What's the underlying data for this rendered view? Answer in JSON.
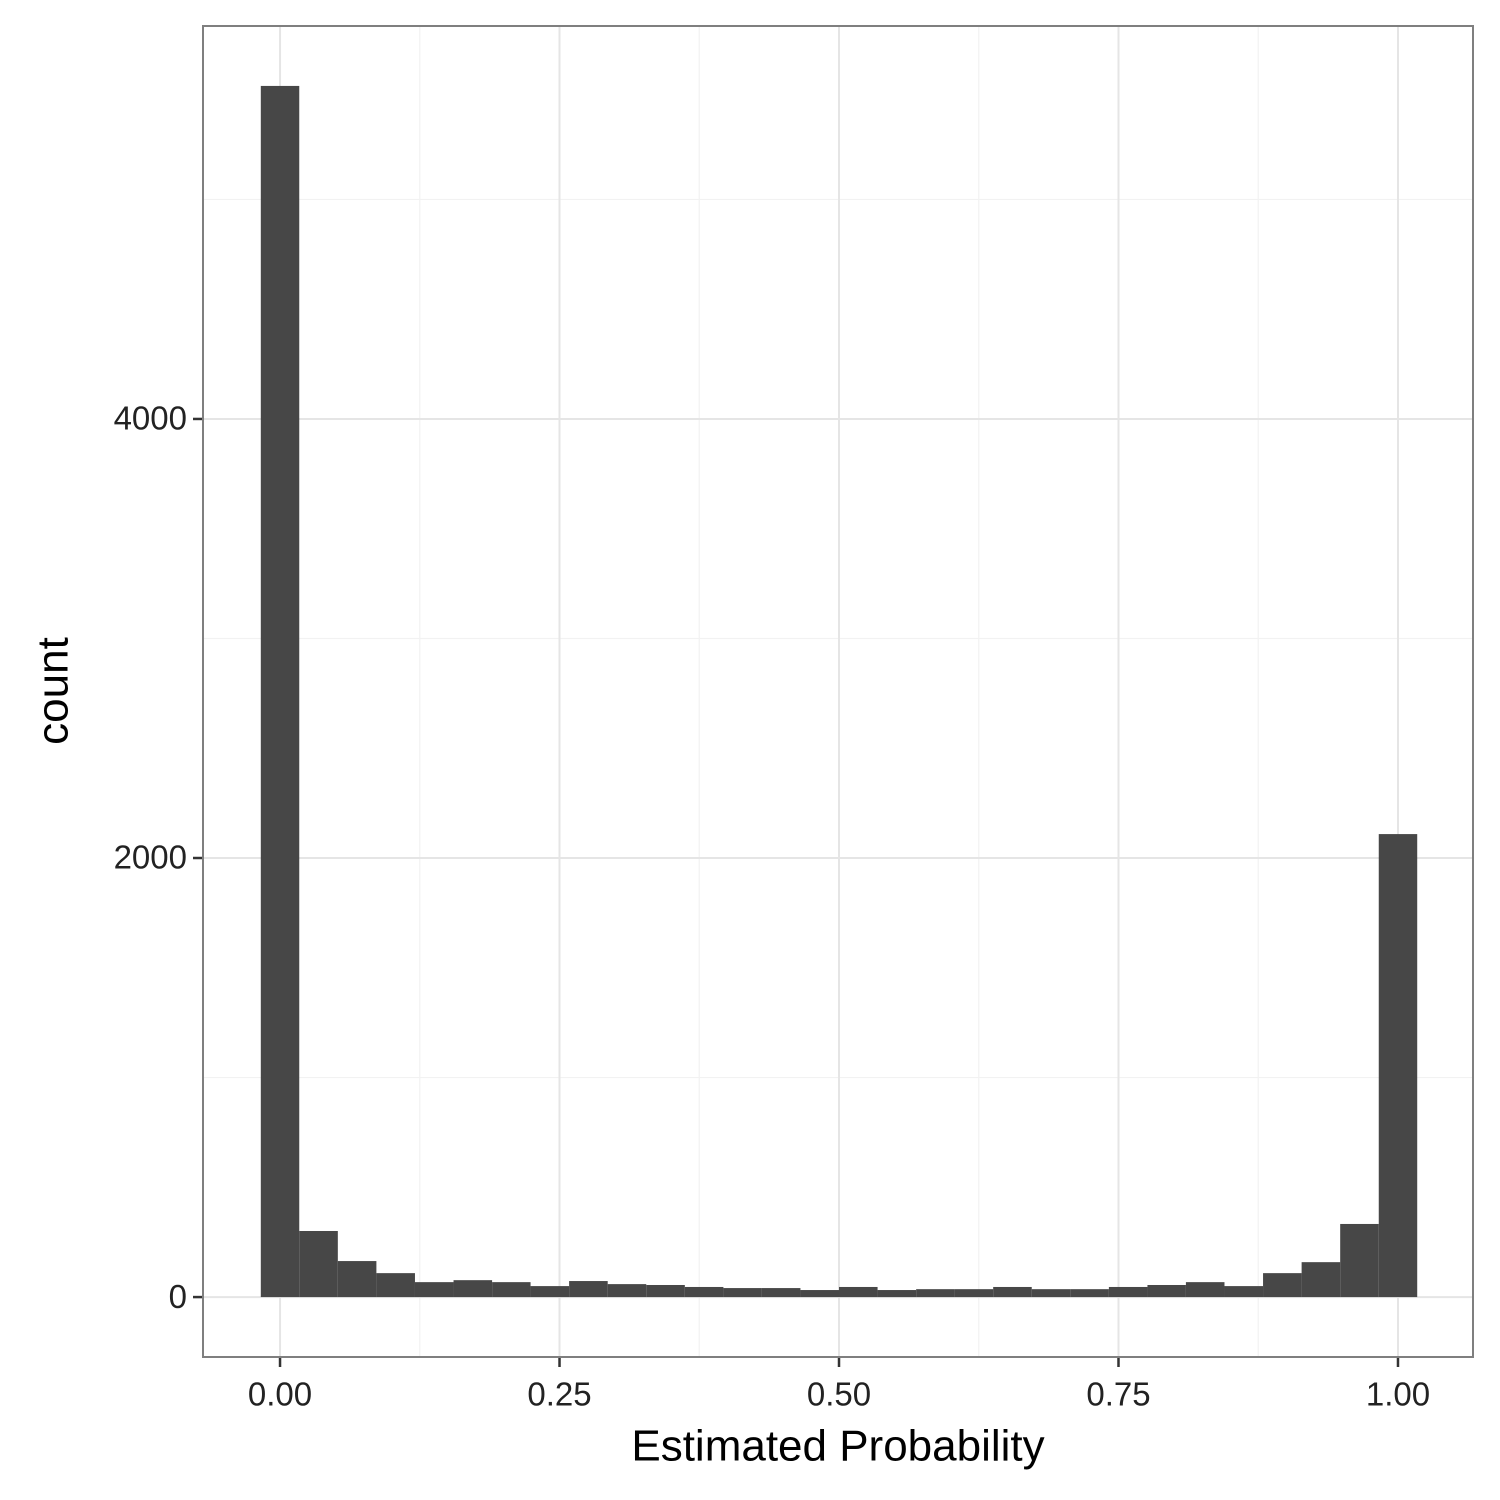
{
  "chart_data": {
    "type": "histogram",
    "x_label": "Estimated Probability",
    "y_label": "count",
    "bins": [
      -0.0172,
      0.0172,
      0.0517,
      0.0862,
      0.1207,
      0.1552,
      0.1897,
      0.2241,
      0.2586,
      0.2931,
      0.3276,
      0.3621,
      0.3966,
      0.431,
      0.4655,
      0.5,
      0.5345,
      0.569,
      0.6034,
      0.6379,
      0.6724,
      0.7069,
      0.7414,
      0.7759,
      0.8103,
      0.8448,
      0.8793,
      0.9138,
      0.9483,
      0.9828,
      1.0172
    ],
    "values": [
      5517,
      301,
      164,
      109,
      68,
      77,
      68,
      50,
      73,
      59,
      55,
      46,
      41,
      41,
      32,
      46,
      32,
      36,
      36,
      46,
      36,
      36,
      46,
      55,
      68,
      50,
      109,
      159,
      333,
      2109
    ],
    "color": "#474747",
    "xlim": [
      -0.0689,
      1.0671
    ],
    "ylim": [
      -273,
      5790
    ],
    "xticks": [
      {
        "value": 0,
        "label": "0.00"
      },
      {
        "value": 0.25,
        "label": "0.25"
      },
      {
        "value": 0.5,
        "label": "0.50"
      },
      {
        "value": 0.75,
        "label": "0.75"
      },
      {
        "value": 1,
        "label": "1.00"
      }
    ],
    "yticks": [
      0,
      2000,
      4000
    ],
    "grid": true
  }
}
